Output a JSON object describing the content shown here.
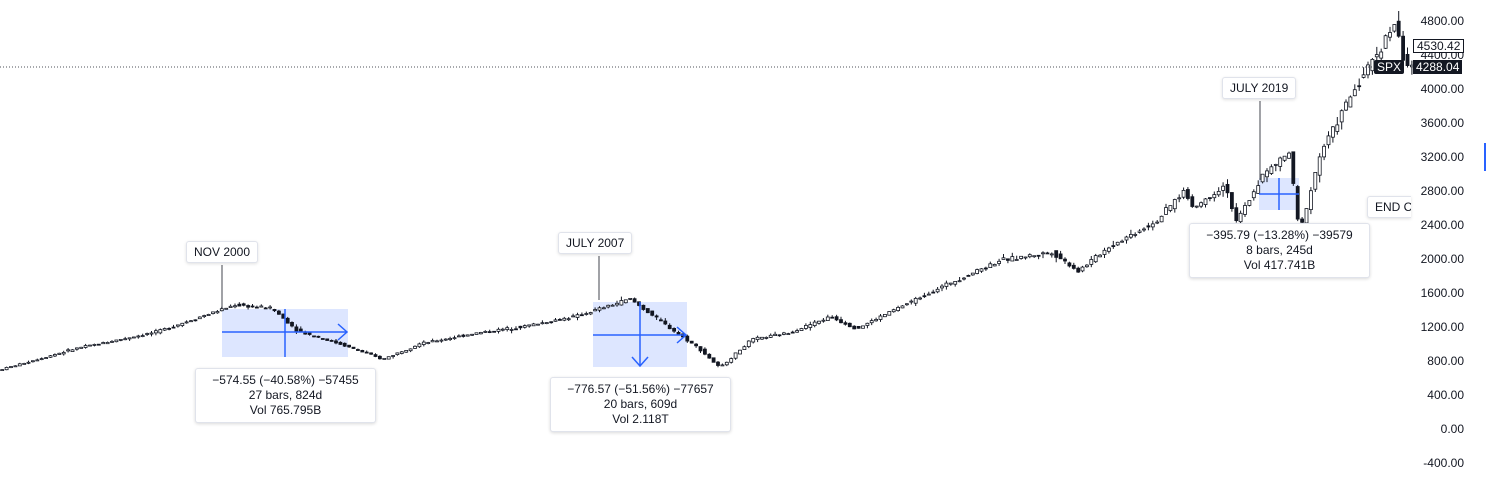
{
  "chart_data": {
    "type": "candlestick",
    "symbol": "SPX",
    "y_ticks": [
      "4800.00",
      "4400.00",
      "4000.00",
      "3600.00",
      "3200.00",
      "2800.00",
      "2400.00",
      "2000.00",
      "1600.00",
      "1200.00",
      "800.00",
      "400.00",
      "0.00",
      "-400.00"
    ],
    "ylim": [
      -400,
      4800
    ],
    "price_labels": {
      "symbol": "SPX",
      "last": "4288.04",
      "marker": "4530.42"
    },
    "series_path": [
      [
        1995.5,
        690
      ],
      [
        1997,
        950
      ],
      [
        1998.5,
        1140
      ],
      [
        2000,
        1460
      ],
      [
        2000.7,
        1420
      ],
      [
        2001.2,
        1150
      ],
      [
        2002,
        1000
      ],
      [
        2002.8,
        820
      ],
      [
        2003.5,
        1000
      ],
      [
        2004.5,
        1120
      ],
      [
        2005.5,
        1210
      ],
      [
        2006.5,
        1330
      ],
      [
        2007.5,
        1530
      ],
      [
        2008,
        1300
      ],
      [
        2008.8,
        950
      ],
      [
        2009.2,
        720
      ],
      [
        2009.8,
        1050
      ],
      [
        2010.5,
        1130
      ],
      [
        2011.3,
        1320
      ],
      [
        2011.8,
        1180
      ],
      [
        2012.5,
        1400
      ],
      [
        2013.5,
        1700
      ],
      [
        2014.5,
        1980
      ],
      [
        2015.5,
        2080
      ],
      [
        2016,
        1860
      ],
      [
        2016.6,
        2150
      ],
      [
        2017.5,
        2450
      ],
      [
        2018,
        2800
      ],
      [
        2018.2,
        2600
      ],
      [
        2018.8,
        2880
      ],
      [
        2018.99,
        2420
      ],
      [
        2019.5,
        2980
      ],
      [
        2020,
        3250
      ],
      [
        2020.2,
        2300
      ],
      [
        2020.6,
        3250
      ],
      [
        2021.2,
        3950
      ],
      [
        2021.8,
        4550
      ],
      [
        2022,
        4780
      ],
      [
        2022.2,
        4300
      ],
      [
        2022.25,
        4288
      ]
    ],
    "annotations": [
      {
        "label": "NOV 2000",
        "stats": [
          "−574.55 (−40.58%) −57455",
          "27 bars, 824d",
          "Vol 765.795B"
        ]
      },
      {
        "label": "JULY 2007",
        "stats": [
          "−776.57 (−51.56%) −77657",
          "20 bars, 609d",
          "Vol 2.118T"
        ]
      },
      {
        "label": "JULY 2019",
        "stats": [
          "−395.79 (−13.28%) −39579",
          "8 bars, 245d",
          "Vol 417.741B"
        ]
      },
      {
        "label": "END C"
      }
    ]
  }
}
